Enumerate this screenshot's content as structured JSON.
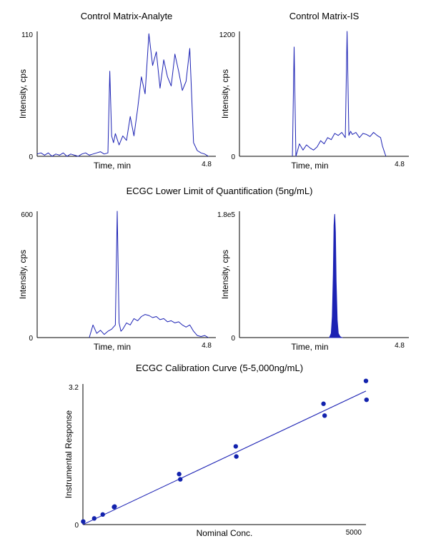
{
  "colors": {
    "trace": "#1c22b4",
    "axis": "#000000",
    "point": "#1222ad"
  },
  "section_titles": {
    "lloq": "ECGC Lower Limit of Quantification (5ng/mL)",
    "calibration": "ECGC Calibration Curve (5-5,000ng/mL)"
  },
  "chart_data": [
    {
      "type": "line",
      "title": "Control Matrix-Analyte",
      "xlabel": "Time, min",
      "ylabel": "Intensity, cps",
      "xlim": [
        0,
        4.8
      ],
      "ylim": [
        0,
        110
      ],
      "x_tick_labels": [
        "4.8"
      ],
      "y_tick_labels": [
        "0",
        "110"
      ],
      "filled": false,
      "series": [
        {
          "x": [
            0.0,
            0.1,
            0.2,
            0.3,
            0.4,
            0.5,
            0.6,
            0.7,
            0.8,
            0.9,
            1.0,
            1.1,
            1.2,
            1.3,
            1.4,
            1.5,
            1.6,
            1.7,
            1.8,
            1.9,
            1.95,
            2.0,
            2.05,
            2.1,
            2.2,
            2.3,
            2.4,
            2.5,
            2.6,
            2.7,
            2.8,
            2.9,
            3.0,
            3.1,
            3.2,
            3.3,
            3.4,
            3.5,
            3.6,
            3.7,
            3.8,
            3.9,
            4.0,
            4.1,
            4.2,
            4.3,
            4.4,
            4.5,
            4.6
          ],
          "values": [
            2,
            3,
            1,
            3,
            0,
            2,
            1,
            3,
            0,
            2,
            1,
            0,
            2,
            3,
            1,
            2,
            3,
            4,
            2,
            3,
            75,
            18,
            12,
            20,
            10,
            18,
            14,
            35,
            18,
            42,
            70,
            55,
            108,
            80,
            92,
            60,
            85,
            70,
            62,
            90,
            75,
            58,
            66,
            95,
            12,
            5,
            3,
            2,
            0
          ]
        }
      ]
    },
    {
      "type": "line",
      "title": "Control Matrix-IS",
      "xlabel": "Time, min",
      "ylabel": "Intensity, cps",
      "xlim": [
        0,
        4.8
      ],
      "ylim": [
        0,
        1200
      ],
      "x_tick_labels": [
        "4.8"
      ],
      "y_tick_labels": [
        "0",
        "1200"
      ],
      "filled": false,
      "series": [
        {
          "x": [
            1.5,
            1.55,
            1.6,
            1.65,
            1.7,
            1.8,
            1.9,
            2.0,
            2.1,
            2.2,
            2.3,
            2.4,
            2.5,
            2.6,
            2.7,
            2.8,
            2.9,
            3.0,
            3.05,
            3.1,
            3.15,
            3.2,
            3.3,
            3.4,
            3.5,
            3.6,
            3.7,
            3.8,
            3.9,
            4.0,
            4.05,
            4.1,
            4.15
          ],
          "values": [
            0,
            1050,
            0,
            60,
            120,
            60,
            110,
            80,
            60,
            90,
            150,
            120,
            180,
            160,
            220,
            200,
            230,
            180,
            1200,
            200,
            240,
            210,
            230,
            180,
            220,
            210,
            190,
            230,
            200,
            180,
            100,
            50,
            0
          ]
        }
      ]
    },
    {
      "type": "line",
      "title": "",
      "xlabel": "Time, min",
      "ylabel": "Intensity, cps",
      "xlim": [
        0,
        4.8
      ],
      "ylim": [
        0,
        600
      ],
      "x_tick_labels": [
        "4.8"
      ],
      "y_tick_labels": [
        "0",
        "600"
      ],
      "filled": false,
      "series": [
        {
          "x": [
            1.4,
            1.5,
            1.6,
            1.7,
            1.8,
            1.9,
            2.0,
            2.1,
            2.15,
            2.2,
            2.25,
            2.3,
            2.4,
            2.5,
            2.6,
            2.7,
            2.8,
            2.9,
            3.0,
            3.1,
            3.2,
            3.3,
            3.4,
            3.5,
            3.6,
            3.7,
            3.8,
            3.9,
            4.0,
            4.1,
            4.2,
            4.3,
            4.4,
            4.5,
            4.6
          ],
          "values": [
            0,
            60,
            20,
            35,
            15,
            30,
            40,
            60,
            600,
            70,
            30,
            40,
            70,
            60,
            90,
            80,
            100,
            110,
            105,
            95,
            100,
            85,
            90,
            75,
            80,
            70,
            75,
            60,
            50,
            60,
            30,
            10,
            5,
            10,
            0
          ]
        }
      ]
    },
    {
      "type": "area",
      "title": "",
      "xlabel": "Time, min",
      "ylabel": "Intensity, cps",
      "xlim": [
        0,
        4.8
      ],
      "ylim": [
        0,
        180000
      ],
      "x_tick_labels": [
        "4.8"
      ],
      "y_tick_labels": [
        "0",
        "1.8e5"
      ],
      "filled": true,
      "series": [
        {
          "x": [
            2.55,
            2.6,
            2.63,
            2.66,
            2.68,
            2.7,
            2.72,
            2.74,
            2.77,
            2.8,
            2.85,
            2.9
          ],
          "values": [
            0,
            6000,
            30000,
            90000,
            160000,
            176000,
            150000,
            80000,
            25000,
            6000,
            1500,
            0
          ]
        }
      ]
    },
    {
      "type": "scatter",
      "title": "",
      "xlabel": "Nominal Conc.",
      "ylabel": "Instrumental Response",
      "xlim": [
        0,
        5000
      ],
      "ylim": [
        0,
        3.2
      ],
      "x_tick_labels": [
        "5000"
      ],
      "y_tick_labels": [
        "0",
        "3.2"
      ],
      "fit_line": {
        "x": [
          0,
          5000
        ],
        "y": [
          0.0,
          3.04
        ]
      },
      "series": [
        {
          "x": [
            5,
            200,
            350,
            550,
            560,
            1700,
            1720,
            2700,
            2710,
            4250,
            4270,
            5000,
            5010
          ],
          "values": [
            0.07,
            0.14,
            0.23,
            0.4,
            0.41,
            1.15,
            1.03,
            1.78,
            1.55,
            2.75,
            2.48,
            3.27,
            2.84
          ]
        }
      ]
    }
  ]
}
